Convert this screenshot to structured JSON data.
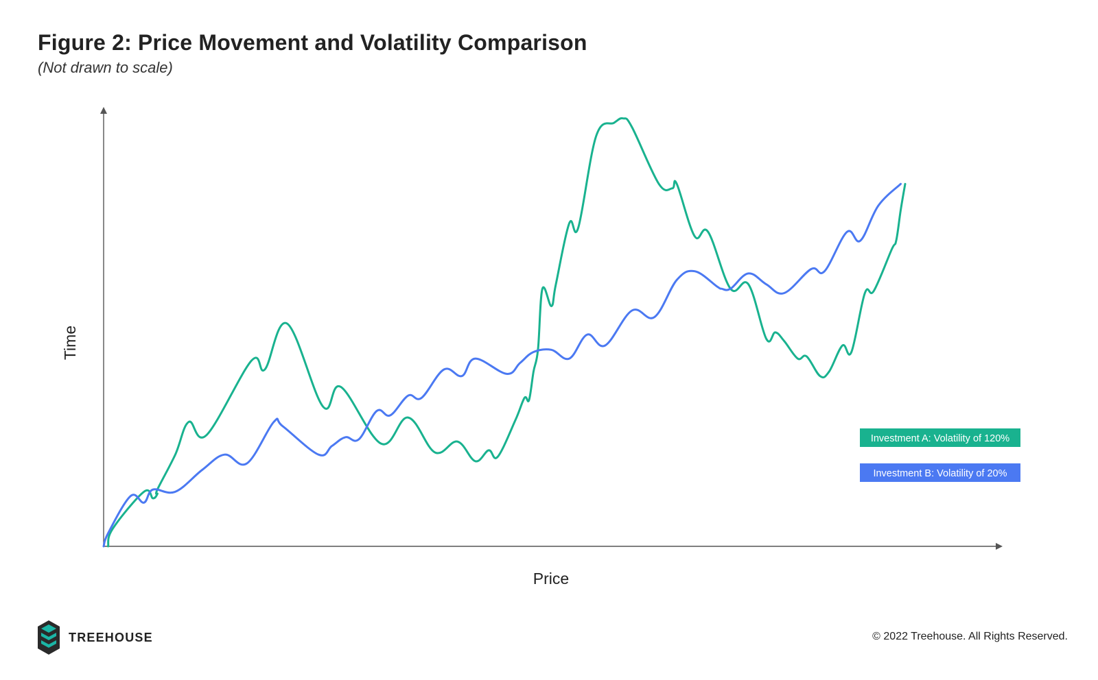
{
  "header": {
    "title": "Figure 2: Price Movement and Volatility Comparison",
    "subtitle": "(Not drawn to scale)"
  },
  "chart_data": {
    "type": "line",
    "title": "Figure 2: Price Movement and Volatility Comparison",
    "subtitle": "(Not drawn to scale)",
    "xlabel": "Price",
    "ylabel": "Time",
    "xlim": [
      0,
      100
    ],
    "ylim": [
      0,
      100
    ],
    "ticks": "none",
    "grid": false,
    "legend": "bottom-right",
    "series": [
      {
        "name": "Investment A: Volatility of 120%",
        "color": "#19b28f",
        "points": [
          [
            0.5,
            0
          ],
          [
            1,
            4
          ],
          [
            4.5,
            12.5
          ],
          [
            5.5,
            11
          ],
          [
            6,
            12
          ],
          [
            6,
            13
          ],
          [
            8,
            21
          ],
          [
            9.5,
            28.5
          ],
          [
            11.5,
            25.5
          ],
          [
            16.5,
            42.5
          ],
          [
            18,
            40.5
          ],
          [
            20.5,
            51
          ],
          [
            24.5,
            32
          ],
          [
            26.5,
            36.5
          ],
          [
            31,
            23.5
          ],
          [
            34,
            29.5
          ],
          [
            37,
            21.5
          ],
          [
            39.5,
            24
          ],
          [
            41.5,
            19.5
          ],
          [
            43,
            22
          ],
          [
            44,
            20.5
          ],
          [
            46,
            29
          ],
          [
            47,
            34
          ],
          [
            47.5,
            33.5
          ],
          [
            48,
            40
          ],
          [
            48.5,
            45
          ],
          [
            49,
            59
          ],
          [
            50,
            55
          ],
          [
            50.5,
            60
          ],
          [
            52,
            74
          ],
          [
            53,
            73
          ],
          [
            55,
            94
          ],
          [
            57,
            97
          ],
          [
            58,
            98
          ],
          [
            59,
            96
          ],
          [
            62,
            83
          ],
          [
            63.5,
            82
          ],
          [
            64,
            83
          ],
          [
            66,
            71
          ],
          [
            67.5,
            72
          ],
          [
            70,
            59
          ],
          [
            72,
            60
          ],
          [
            74,
            47.5
          ],
          [
            75,
            49
          ],
          [
            76,
            47
          ],
          [
            77.5,
            43
          ],
          [
            78.5,
            43.5
          ],
          [
            80,
            39
          ],
          [
            81,
            40
          ],
          [
            82.5,
            46
          ],
          [
            83.5,
            44.5
          ],
          [
            85,
            58
          ],
          [
            86,
            58.5
          ],
          [
            88,
            68
          ],
          [
            88.5,
            70
          ],
          [
            89,
            77
          ],
          [
            89.5,
            83
          ]
        ]
      },
      {
        "name": "Investment B: Volatility of 20%",
        "color": "#4b79f2",
        "points": [
          [
            0,
            0
          ],
          [
            0.5,
            3
          ],
          [
            3,
            11.5
          ],
          [
            4.5,
            10
          ],
          [
            5.5,
            13
          ],
          [
            8,
            12.5
          ],
          [
            11,
            17.5
          ],
          [
            13.5,
            21
          ],
          [
            16,
            19
          ],
          [
            19,
            28.5
          ],
          [
            20,
            27.5
          ],
          [
            24,
            21
          ],
          [
            25.5,
            23
          ],
          [
            27,
            25
          ],
          [
            28.5,
            24.5
          ],
          [
            30.5,
            31
          ],
          [
            32,
            30
          ],
          [
            34,
            34.5
          ],
          [
            35.5,
            34
          ],
          [
            38,
            40.5
          ],
          [
            40,
            39
          ],
          [
            41.5,
            43
          ],
          [
            45,
            39.5
          ],
          [
            46.5,
            42
          ],
          [
            48,
            44.5
          ],
          [
            50,
            45
          ],
          [
            52,
            43
          ],
          [
            54,
            48.5
          ],
          [
            56,
            46
          ],
          [
            59,
            54
          ],
          [
            61.5,
            52.5
          ],
          [
            64,
            61
          ],
          [
            66,
            63
          ],
          [
            68.5,
            59.5
          ],
          [
            69,
            59
          ],
          [
            70,
            59
          ],
          [
            72,
            62.5
          ],
          [
            74,
            60
          ],
          [
            76,
            58
          ],
          [
            79,
            63.5
          ],
          [
            80.5,
            63
          ],
          [
            83,
            72
          ],
          [
            84.5,
            70
          ],
          [
            86.5,
            78
          ],
          [
            89,
            83
          ]
        ]
      }
    ]
  },
  "brand": {
    "name": "TREEHOUSE",
    "logo_icon": "treehouse-logo",
    "colors": {
      "dark": "#2a2a2a",
      "teal": "#1bb6a6"
    }
  },
  "footer": {
    "copyright": "© 2022 Treehouse. All Rights Reserved."
  },
  "colors": {
    "axis": "#555555",
    "investment_a": "#19b28f",
    "investment_b": "#4b79f2"
  }
}
